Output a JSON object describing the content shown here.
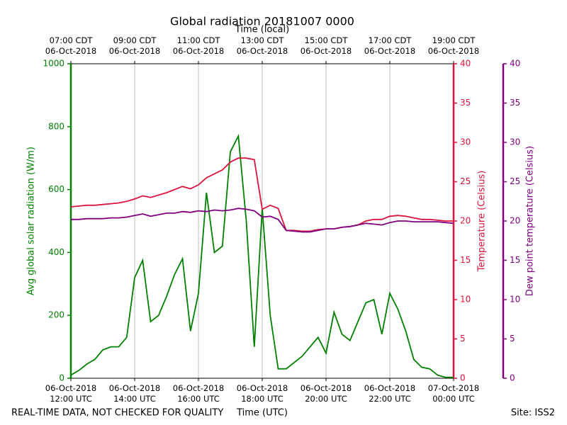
{
  "chart_data": {
    "type": "line",
    "title": "Global radiation 20181007 0000",
    "x2_label": "Time (local)",
    "x_label": "Time (UTC)",
    "y_label": "Avg global solar radiation (W/m)",
    "y2_label": "Temperature (Celsius)",
    "y3_label": "Dew point temperature (Celsius)",
    "footnote": "REAL-TIME DATA, NOT CHECKED FOR QUALITY",
    "site": "Site: ISS2",
    "grid": true,
    "x": [
      "2018-10-06T12:00",
      "2018-10-06T12:15",
      "2018-10-06T12:30",
      "2018-10-06T12:45",
      "2018-10-06T13:00",
      "2018-10-06T13:15",
      "2018-10-06T13:30",
      "2018-10-06T13:45",
      "2018-10-06T14:00",
      "2018-10-06T14:15",
      "2018-10-06T14:30",
      "2018-10-06T14:45",
      "2018-10-06T15:00",
      "2018-10-06T15:15",
      "2018-10-06T15:30",
      "2018-10-06T15:45",
      "2018-10-06T16:00",
      "2018-10-06T16:15",
      "2018-10-06T16:30",
      "2018-10-06T16:45",
      "2018-10-06T17:00",
      "2018-10-06T17:15",
      "2018-10-06T17:30",
      "2018-10-06T17:45",
      "2018-10-06T18:00",
      "2018-10-06T18:15",
      "2018-10-06T18:30",
      "2018-10-06T18:45",
      "2018-10-06T19:00",
      "2018-10-06T19:15",
      "2018-10-06T19:30",
      "2018-10-06T19:45",
      "2018-10-06T20:00",
      "2018-10-06T20:15",
      "2018-10-06T20:30",
      "2018-10-06T20:45",
      "2018-10-06T21:00",
      "2018-10-06T21:15",
      "2018-10-06T21:30",
      "2018-10-06T21:45",
      "2018-10-06T22:00",
      "2018-10-06T22:15",
      "2018-10-06T22:30",
      "2018-10-06T22:45",
      "2018-10-06T23:00",
      "2018-10-06T23:15",
      "2018-10-06T23:30",
      "2018-10-06T23:45",
      "2018-10-07T00:00"
    ],
    "xlim": [
      "2018-10-06T12:00",
      "2018-10-07T00:00"
    ],
    "xticks": [
      {
        "value": "2018-10-06T12:00",
        "label": "06-Oct-2018\n12:00 UTC"
      },
      {
        "value": "2018-10-06T14:00",
        "label": "06-Oct-2018\n14:00 UTC"
      },
      {
        "value": "2018-10-06T16:00",
        "label": "06-Oct-2018\n16:00 UTC"
      },
      {
        "value": "2018-10-06T18:00",
        "label": "06-Oct-2018\n18:00 UTC"
      },
      {
        "value": "2018-10-06T20:00",
        "label": "06-Oct-2018\n20:00 UTC"
      },
      {
        "value": "2018-10-06T22:00",
        "label": "06-Oct-2018\n22:00 UTC"
      },
      {
        "value": "2018-10-07T00:00",
        "label": "07-Oct-2018\n00:00 UTC"
      }
    ],
    "x2ticks": [
      {
        "value": "2018-10-06T12:00",
        "label": "07:00 CDT\n06-Oct-2018"
      },
      {
        "value": "2018-10-06T14:00",
        "label": "09:00 CDT\n06-Oct-2018"
      },
      {
        "value": "2018-10-06T16:00",
        "label": "11:00 CDT\n06-Oct-2018"
      },
      {
        "value": "2018-10-06T18:00",
        "label": "13:00 CDT\n06-Oct-2018"
      },
      {
        "value": "2018-10-06T20:00",
        "label": "15:00 CDT\n06-Oct-2018"
      },
      {
        "value": "2018-10-06T22:00",
        "label": "17:00 CDT\n06-Oct-2018"
      },
      {
        "value": "2018-10-07T00:00",
        "label": "19:00 CDT\n06-Oct-2018"
      }
    ],
    "ylim": [
      0,
      1000
    ],
    "yticks": [
      0,
      200,
      400,
      600,
      800,
      1000
    ],
    "y2lim": [
      0,
      40
    ],
    "y2ticks": [
      0,
      5,
      10,
      15,
      20,
      25,
      30,
      35,
      40
    ],
    "y3lim": [
      0,
      40
    ],
    "y3ticks": [
      0,
      5,
      10,
      15,
      20,
      25,
      30,
      35,
      40
    ],
    "series": [
      {
        "name": "Avg global solar radiation",
        "color": "#008000",
        "axis": "y",
        "values": [
          10,
          25,
          45,
          60,
          90,
          100,
          100,
          130,
          320,
          375,
          180,
          200,
          260,
          330,
          380,
          150,
          270,
          590,
          400,
          420,
          720,
          770,
          500,
          100,
          540,
          200,
          30,
          30,
          50,
          70,
          100,
          130,
          80,
          210,
          140,
          120,
          180,
          240,
          250,
          140,
          270,
          220,
          150,
          60,
          35,
          30,
          10,
          3,
          3
        ]
      },
      {
        "name": "Temperature",
        "color": "#dc143c",
        "axis": "y2",
        "values": [
          21.8,
          21.9,
          22.0,
          22.0,
          22.1,
          22.2,
          22.3,
          22.5,
          22.8,
          23.2,
          23.0,
          23.3,
          23.6,
          24.0,
          24.4,
          24.1,
          24.6,
          25.5,
          26.0,
          26.5,
          27.5,
          28.0,
          28.0,
          27.8,
          21.5,
          22.0,
          21.6,
          18.8,
          18.8,
          18.7,
          18.7,
          18.9,
          19.0,
          19.0,
          19.2,
          19.3,
          19.5,
          20.0,
          20.2,
          20.2,
          20.6,
          20.7,
          20.6,
          20.4,
          20.2,
          20.2,
          20.1,
          20.0,
          20.0
        ]
      },
      {
        "name": "Dew point temperature",
        "color": "#800080",
        "axis": "y3",
        "values": [
          20.2,
          20.2,
          20.3,
          20.3,
          20.3,
          20.4,
          20.4,
          20.5,
          20.7,
          20.9,
          20.6,
          20.8,
          21.0,
          21.0,
          21.2,
          21.1,
          21.3,
          21.2,
          21.4,
          21.3,
          21.4,
          21.6,
          21.5,
          21.3,
          20.5,
          20.6,
          20.2,
          18.8,
          18.7,
          18.6,
          18.6,
          18.8,
          19.0,
          19.0,
          19.2,
          19.3,
          19.5,
          19.7,
          19.6,
          19.5,
          19.8,
          20.0,
          20.0,
          19.9,
          19.9,
          19.9,
          19.9,
          19.8,
          19.7
        ]
      }
    ]
  }
}
